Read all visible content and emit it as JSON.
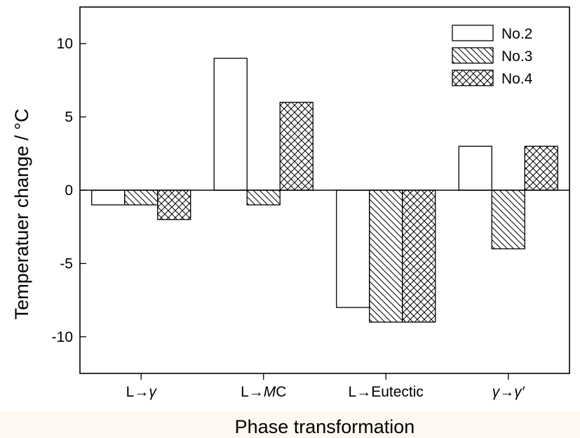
{
  "chart_data": {
    "type": "bar",
    "xlabel": "Phase transformation",
    "ylabel": "Temperatuer change / °C",
    "ylim": [
      -12.5,
      12.5
    ],
    "yticks": [
      -10,
      -5,
      0,
      5,
      10
    ],
    "ytick_labels": [
      "-10",
      "-5",
      "0",
      "5",
      "10"
    ],
    "categories": [
      "L→γ",
      "L→M̸C",
      "L→Eutectic",
      "γ→γ′"
    ],
    "category_labels": [
      {
        "parts": [
          {
            "t": "L→",
            "i": false
          },
          {
            "t": "γ",
            "i": true
          }
        ]
      },
      {
        "parts": [
          {
            "t": "L→",
            "i": false
          },
          {
            "t": "M",
            "i": true
          },
          {
            "t": "C",
            "i": false
          }
        ]
      },
      {
        "parts": [
          {
            "t": "L→Eutectic",
            "i": false
          }
        ]
      },
      {
        "parts": [
          {
            "t": "γ",
            "i": true
          },
          {
            "t": "→",
            "i": false
          },
          {
            "t": "γ′",
            "i": true
          }
        ]
      }
    ],
    "series": [
      {
        "name": "No.2",
        "pattern": "none",
        "values": [
          -1,
          9,
          -8,
          3
        ]
      },
      {
        "name": "No.3",
        "pattern": "diagonal",
        "values": [
          -1,
          -1,
          -9,
          -4
        ]
      },
      {
        "name": "No.4",
        "pattern": "crosshatch",
        "values": [
          -2,
          6,
          -9,
          3
        ]
      }
    ],
    "legend_position": "top-right",
    "grid": false
  }
}
